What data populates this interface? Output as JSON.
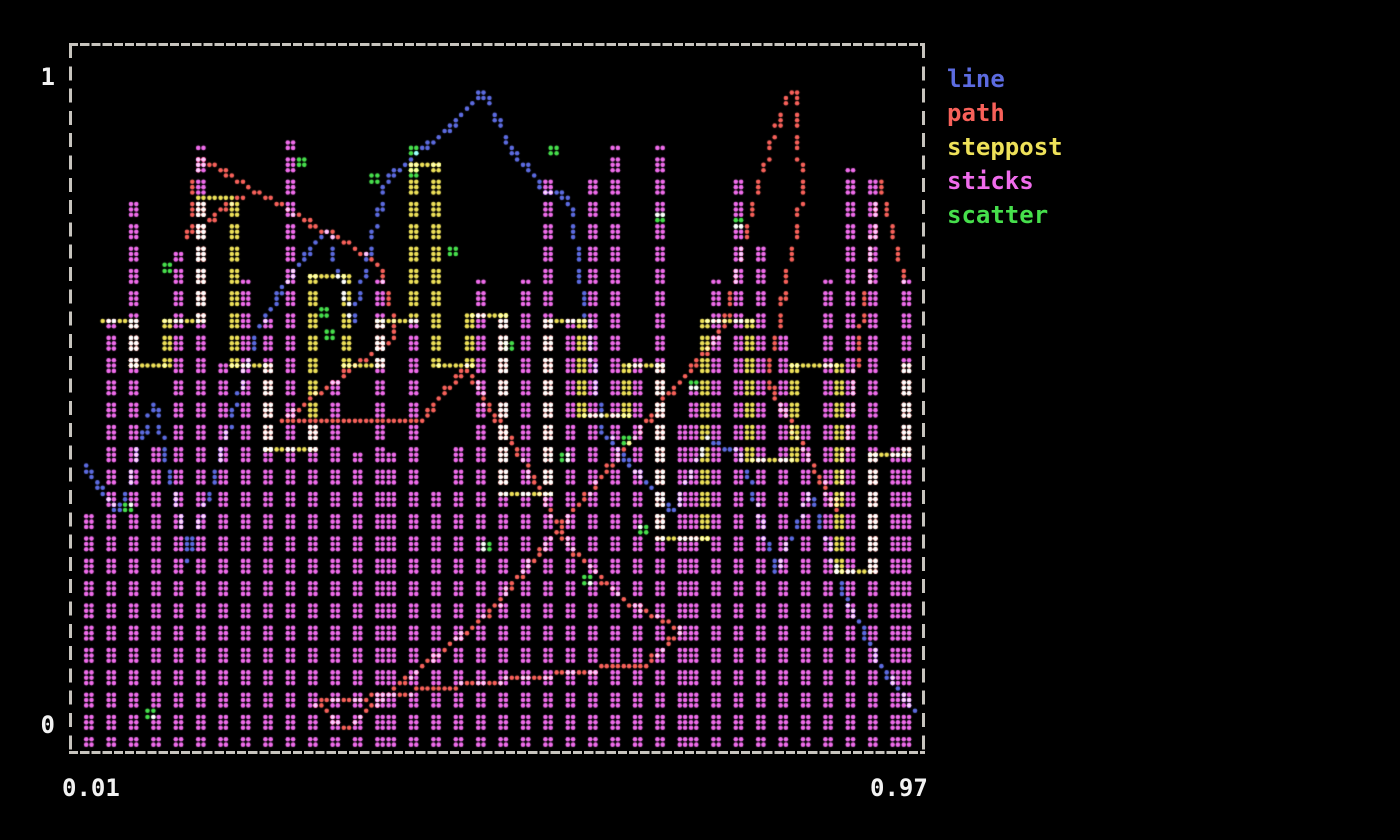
{
  "app": {
    "background": "#000000",
    "text_color": "#f2f2f2",
    "border_color": "#c7c4be"
  },
  "plot": {
    "y_axis": {
      "top_label": "1",
      "bottom_label": "0"
    },
    "x_axis": {
      "left_label": "0.01",
      "right_label": "0.97"
    },
    "legend": {
      "items": [
        {
          "label": "line",
          "color": "#5c6be0"
        },
        {
          "label": "path",
          "color": "#f8615a"
        },
        {
          "label": "steppost",
          "color": "#eee159"
        },
        {
          "label": "sticks",
          "color": "#f06cec"
        },
        {
          "label": "scatter",
          "color": "#46df4c"
        }
      ]
    }
  },
  "chart_data": {
    "type": "line",
    "title": "",
    "xlabel": "",
    "ylabel": "",
    "xlim": [
      0.01,
      0.97
    ],
    "ylim": [
      0,
      1
    ],
    "x_tick_labels": [
      "0.01",
      "0.97"
    ],
    "y_tick_labels": [
      "0",
      "1"
    ],
    "grid": false,
    "legend_position": "right-outside",
    "marker": "braille-dot (terminal plot)",
    "overlap_blend": "additive; overlapping series cells render cyan/white",
    "note": "dense random-data demo of 5 draw styles; point values estimated from pixels",
    "series": [
      {
        "name": "line",
        "style": "line",
        "color": "#5c6be0",
        "x": [
          0.01,
          0.05,
          0.09,
          0.13,
          0.17,
          0.21,
          0.25,
          0.29,
          0.32,
          0.36,
          0.4,
          0.43,
          0.47,
          0.5,
          0.54,
          0.57,
          0.61,
          0.65,
          0.69,
          0.73,
          0.77,
          0.81,
          0.85,
          0.89,
          0.93,
          0.97
        ],
        "y": [
          0.42,
          0.35,
          0.52,
          0.28,
          0.45,
          0.63,
          0.71,
          0.78,
          0.64,
          0.86,
          0.9,
          0.93,
          0.99,
          0.91,
          0.84,
          0.83,
          0.47,
          0.41,
          0.35,
          0.46,
          0.44,
          0.26,
          0.38,
          0.22,
          0.12,
          0.05
        ]
      },
      {
        "name": "path",
        "style": "path",
        "color": "#f8615a",
        "x": [
          0.19,
          0.13,
          0.14,
          0.35,
          0.37,
          0.33,
          0.24,
          0.4,
          0.45,
          0.52,
          0.57,
          0.63,
          0.7,
          0.66,
          0.28,
          0.31,
          0.48,
          0.75,
          0.79,
          0.83,
          0.84,
          0.8,
          0.88,
          0.93,
          0.96
        ],
        "y": [
          0.83,
          0.77,
          0.89,
          0.73,
          0.62,
          0.58,
          0.49,
          0.49,
          0.57,
          0.42,
          0.3,
          0.22,
          0.17,
          0.12,
          0.06,
          0.02,
          0.2,
          0.63,
          0.86,
          1.0,
          0.83,
          0.55,
          0.35,
          0.85,
          0.7
        ]
      },
      {
        "name": "steppost",
        "style": "steppost",
        "color": "#eee159",
        "x": [
          0.03,
          0.06,
          0.1,
          0.14,
          0.18,
          0.22,
          0.27,
          0.31,
          0.35,
          0.39,
          0.42,
          0.46,
          0.5,
          0.55,
          0.59,
          0.64,
          0.68,
          0.73,
          0.78,
          0.83,
          0.88,
          0.92,
          0.96
        ],
        "y": [
          0.64,
          0.57,
          0.64,
          0.83,
          0.57,
          0.45,
          0.71,
          0.57,
          0.64,
          0.88,
          0.57,
          0.65,
          0.38,
          0.64,
          0.5,
          0.57,
          0.31,
          0.64,
          0.43,
          0.57,
          0.26,
          0.44,
          0.57
        ]
      },
      {
        "name": "sticks",
        "style": "sticks",
        "color": "#f06cec",
        "x": [
          0.02,
          0.045,
          0.07,
          0.095,
          0.12,
          0.145,
          0.17,
          0.195,
          0.22,
          0.245,
          0.27,
          0.295,
          0.32,
          0.345,
          0.37,
          0.395,
          0.42,
          0.445,
          0.47,
          0.495,
          0.52,
          0.545,
          0.57,
          0.595,
          0.62,
          0.645,
          0.67,
          0.695,
          0.72,
          0.745,
          0.77,
          0.795,
          0.82,
          0.845,
          0.87,
          0.895,
          0.92,
          0.945,
          0.965
        ],
        "y": [
          0.35,
          0.64,
          0.83,
          0.45,
          0.74,
          0.9,
          0.57,
          0.7,
          0.64,
          0.91,
          0.49,
          0.55,
          0.44,
          0.7,
          0.44,
          0.64,
          0.38,
          0.45,
          0.7,
          0.64,
          0.7,
          0.86,
          0.64,
          0.86,
          0.9,
          0.59,
          0.9,
          0.49,
          0.54,
          0.7,
          0.86,
          0.75,
          0.62,
          0.49,
          0.7,
          0.87,
          0.86,
          0.45,
          0.7
        ]
      },
      {
        "name": "scatter",
        "style": "scatter",
        "color": "#46df4c",
        "x": [
          0.26,
          0.34,
          0.43,
          0.55,
          0.675,
          0.76,
          0.285,
          0.29,
          0.385,
          0.39,
          0.565,
          0.63,
          0.08,
          0.055,
          0.1,
          0.47,
          0.59,
          0.71,
          0.5,
          0.655
        ],
        "y": [
          0.89,
          0.86,
          0.75,
          0.9,
          0.8,
          0.79,
          0.655,
          0.62,
          0.9,
          0.87,
          0.44,
          0.46,
          0.05,
          0.36,
          0.73,
          0.3,
          0.25,
          0.55,
          0.61,
          0.33
        ]
      }
    ]
  }
}
